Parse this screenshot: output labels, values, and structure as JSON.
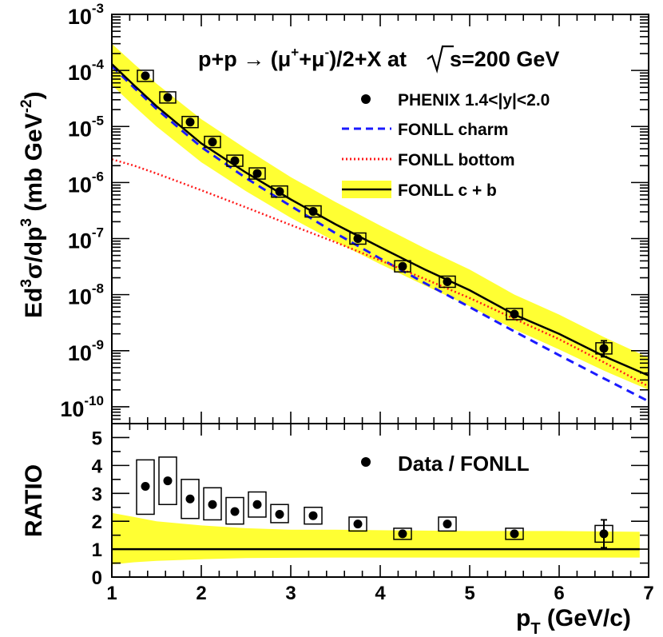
{
  "chart_data": [
    {
      "type": "scatter",
      "title": "p+p → (μ⁺+μ⁻)/2+X at √s=200 GeV",
      "ylabel": "Ed³σ/dp³ (mb GeV⁻²)",
      "xlabel": "",
      "yscale": "log",
      "ylim": [
        5e-11,
        0.001
      ],
      "xlim": [
        1,
        7
      ],
      "yticks": [
        {
          "value": 1e-10,
          "label": "10",
          "exp": "-10"
        },
        {
          "value": 1e-09,
          "label": "10",
          "exp": "-9"
        },
        {
          "value": 1e-08,
          "label": "10",
          "exp": "-8"
        },
        {
          "value": 1e-07,
          "label": "10",
          "exp": "-7"
        },
        {
          "value": 1e-06,
          "label": "10",
          "exp": "-6"
        },
        {
          "value": 1e-05,
          "label": "10",
          "exp": "-5"
        },
        {
          "value": 0.0001,
          "label": "10",
          "exp": "-4"
        },
        {
          "value": 0.001,
          "label": "10",
          "exp": "-3"
        }
      ],
      "legend": [
        {
          "label": "PHENIX 1.4<|y|<2.0",
          "style": "marker"
        },
        {
          "label": "FONLL charm",
          "style": "dashed",
          "color": "#1a1aff"
        },
        {
          "label": "FONLL bottom",
          "style": "dotted",
          "color": "#ff1a1a"
        },
        {
          "label": "FONLL c + b",
          "style": "band",
          "color": "#000000",
          "band_color": "#ffff33"
        }
      ],
      "data_points": [
        {
          "x": 1.375,
          "y": 8e-05
        },
        {
          "x": 1.625,
          "y": 3.3e-05
        },
        {
          "x": 1.875,
          "y": 1.2e-05
        },
        {
          "x": 2.125,
          "y": 5.3e-06
        },
        {
          "x": 2.375,
          "y": 2.45e-06
        },
        {
          "x": 2.625,
          "y": 1.45e-06
        },
        {
          "x": 2.875,
          "y": 6.9e-07
        },
        {
          "x": 3.25,
          "y": 3.05e-07
        },
        {
          "x": 3.75,
          "y": 1e-07
        },
        {
          "x": 4.25,
          "y": 3.2e-08
        },
        {
          "x": 4.75,
          "y": 1.7e-08
        },
        {
          "x": 5.5,
          "y": 4.5e-09
        },
        {
          "x": 6.5,
          "y": 1.1e-09,
          "err_low": 7.8e-10,
          "err_high": 1.5e-09
        }
      ],
      "curves": {
        "x": [
          1.0,
          1.25,
          1.5,
          2.0,
          2.5,
          3.0,
          3.5,
          4.0,
          4.5,
          5.0,
          5.5,
          6.0,
          6.5,
          7.0
        ],
        "cb": [
          0.00013,
          5.4e-05,
          2.3e-05,
          5e-06,
          1.5e-06,
          5e-07,
          1.8e-07,
          7e-08,
          2.8e-08,
          1.2e-08,
          4.4e-09,
          2e-09,
          8e-10,
          3.6e-10
        ],
        "band_high": [
          0.0003,
          0.00013,
          5.8e-05,
          1.35e-05,
          4e-06,
          1.25e-06,
          4.5e-07,
          1.7e-07,
          6.7e-08,
          2.8e-08,
          1e-08,
          4.4e-09,
          1.75e-09,
          7.5e-10
        ],
        "band_low": [
          5.5e-05,
          2.3e-05,
          1e-05,
          2.3e-06,
          7e-07,
          2.35e-07,
          8.8e-08,
          3.5e-08,
          1.45e-08,
          6.2e-09,
          2.4e-09,
          1.05e-09,
          4.4e-10,
          2e-10
        ],
        "charm": [
          0.00012,
          4.9e-05,
          2.05e-05,
          4.3e-06,
          1.2e-06,
          3.8e-07,
          1.25e-07,
          4.4e-08,
          1.6e-08,
          6e-09,
          2.2e-09,
          8.3e-10,
          3.2e-10,
          1.25e-10
        ],
        "bottom": [
          2.6e-06,
          2e-06,
          1.45e-06,
          7.3e-07,
          3.6e-07,
          1.75e-07,
          8.6e-08,
          4.1e-08,
          1.9e-08,
          8.7e-09,
          3.7e-09,
          1.6e-09,
          6.2e-10,
          2.3e-10
        ]
      }
    },
    {
      "type": "scatter",
      "ylabel": "RATIO",
      "xlabel": "p_T (GeV/c)",
      "ylim": [
        0,
        5.5
      ],
      "xlim": [
        1,
        7
      ],
      "xticks": [
        1,
        2,
        3,
        4,
        5,
        6,
        7
      ],
      "yticks": [
        0,
        1,
        2,
        3,
        4,
        5
      ],
      "legend": [
        {
          "label": "Data / FONLL",
          "style": "marker"
        }
      ],
      "reference_line": 1,
      "ratio_points": [
        {
          "x": 1.375,
          "y": 3.25,
          "sys_low": 2.25,
          "sys_high": 4.2
        },
        {
          "x": 1.625,
          "y": 3.45,
          "sys_low": 2.6,
          "sys_high": 4.3
        },
        {
          "x": 1.875,
          "y": 2.8,
          "sys_low": 2.1,
          "sys_high": 3.5
        },
        {
          "x": 2.125,
          "y": 2.6,
          "sys_low": 2.05,
          "sys_high": 3.2
        },
        {
          "x": 2.375,
          "y": 2.35,
          "sys_low": 1.9,
          "sys_high": 2.85
        },
        {
          "x": 2.625,
          "y": 2.6,
          "sys_low": 2.15,
          "sys_high": 3.05
        },
        {
          "x": 2.875,
          "y": 2.25,
          "sys_low": 1.95,
          "sys_high": 2.6
        },
        {
          "x": 3.25,
          "y": 2.2,
          "sys_low": 1.9,
          "sys_high": 2.5
        },
        {
          "x": 3.75,
          "y": 1.9,
          "sys_low": 1.65,
          "sys_high": 2.15
        },
        {
          "x": 4.25,
          "y": 1.55,
          "sys_low": 1.35,
          "sys_high": 1.75
        },
        {
          "x": 4.75,
          "y": 1.9,
          "sys_low": 1.65,
          "sys_high": 2.15
        },
        {
          "x": 5.5,
          "y": 1.55,
          "sys_low": 1.35,
          "sys_high": 1.75
        },
        {
          "x": 6.5,
          "y": 1.55,
          "sys_low": 1.25,
          "sys_high": 1.85,
          "err_low": 1.05,
          "err_high": 2.05
        }
      ],
      "band": {
        "x": [
          1.0,
          1.25,
          1.5,
          2.0,
          2.5,
          3.0,
          3.5,
          4.0,
          5.0,
          6.0,
          6.9
        ],
        "high": [
          2.3,
          2.15,
          2.0,
          1.85,
          1.75,
          1.7,
          1.7,
          1.68,
          1.65,
          1.65,
          1.62
        ],
        "low": [
          0.45,
          0.53,
          0.58,
          0.64,
          0.68,
          0.69,
          0.7,
          0.7,
          0.7,
          0.7,
          0.7
        ]
      }
    }
  ],
  "text": {
    "title_main": "p+p → (μ",
    "title_sup1": "+",
    "title_plus": "+μ",
    "title_sup2": "-",
    "title_rest": ")/2+X at ",
    "title_root": "s=200 GeV",
    "y_title_a": "Ed",
    "y_title_sup1": "3",
    "y_title_b": "σ/dp",
    "y_title_sup2": "3",
    "y_title_c": " (mb GeV",
    "y_title_sup3": "-2",
    "y_title_d": ")",
    "ratio_title": "RATIO",
    "x_title_a": "p",
    "x_title_sub": "T",
    "x_title_b": " (GeV/c)"
  },
  "colors": {
    "band": "#ffff33",
    "charm": "#1a1aff",
    "bottom": "#ff1a1a",
    "marker": "#000000"
  }
}
